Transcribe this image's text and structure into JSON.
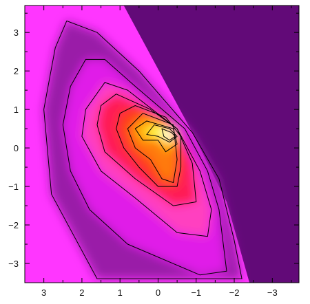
{
  "chart_data": {
    "type": "heatmap",
    "title": "",
    "xlabel": "",
    "ylabel": "",
    "x_axis_reversed": true,
    "xlim": [
      3.5,
      -3.7
    ],
    "ylim": [
      -3.5,
      3.7
    ],
    "x_ticks": [
      {
        "value": 3,
        "label": "3"
      },
      {
        "value": 2,
        "label": "2"
      },
      {
        "value": 1,
        "label": "1"
      },
      {
        "value": 0,
        "label": "0"
      },
      {
        "value": -1,
        "label": "−1"
      },
      {
        "value": -2,
        "label": "−2"
      },
      {
        "value": -3,
        "label": "−3"
      }
    ],
    "y_ticks": [
      {
        "value": 3,
        "label": "3"
      },
      {
        "value": 2,
        "label": "2"
      },
      {
        "value": 1,
        "label": "1"
      },
      {
        "value": 0,
        "label": "0"
      },
      {
        "value": -1,
        "label": "−1"
      },
      {
        "value": -2,
        "label": "−2"
      },
      {
        "value": -3,
        "label": "−3"
      }
    ],
    "grid": false,
    "colormap": [
      "#620a78",
      "#9a1aa8",
      "#e01ae8",
      "#ff3fc0",
      "#ff1a55",
      "#ff3a1a",
      "#ff7a10",
      "#ffc010",
      "#ffff50",
      "#ffffff"
    ],
    "background_left_color": "#ff36ff",
    "background_right_color": "#620a78",
    "contour_color": "#000000",
    "contours": [
      {
        "level": 1,
        "rings": [
          [
            [
              2.4,
              3.3
            ],
            [
              1.6,
              3.0
            ],
            [
              0.5,
              2.0
            ],
            [
              -0.9,
              0.4
            ],
            [
              -1.6,
              -0.8
            ],
            [
              -2.0,
              -2.4
            ],
            [
              -2.2,
              -3.4
            ],
            [
              1.6,
              -3.4
            ],
            [
              2.8,
              -1.2
            ],
            [
              3.0,
              1.0
            ],
            [
              2.7,
              2.6
            ]
          ]
        ]
      },
      {
        "level": 2,
        "rings": [
          [
            [
              1.9,
              2.3
            ],
            [
              1.4,
              2.3
            ],
            [
              0.6,
              1.6
            ],
            [
              -0.7,
              0.5
            ],
            [
              -1.3,
              -0.6
            ],
            [
              -1.6,
              -1.6
            ],
            [
              -1.8,
              -3.2
            ],
            [
              -1.1,
              -3.3
            ],
            [
              0.8,
              -2.5
            ],
            [
              1.8,
              -1.6
            ],
            [
              2.3,
              -0.6
            ],
            [
              2.5,
              0.6
            ],
            [
              2.3,
              1.6
            ]
          ]
        ]
      },
      {
        "level": 3,
        "rings": [
          [
            [
              1.4,
              1.7
            ],
            [
              0.8,
              1.5
            ],
            [
              -0.5,
              0.5
            ],
            [
              -1.1,
              -0.6
            ],
            [
              -1.4,
              -1.6
            ],
            [
              -1.3,
              -2.3
            ],
            [
              -0.5,
              -2.2
            ],
            [
              0.6,
              -1.3
            ],
            [
              1.5,
              -0.6
            ],
            [
              2.0,
              0.3
            ],
            [
              1.9,
              1.0
            ]
          ]
        ]
      },
      {
        "level": 4,
        "rings": [
          [
            [
              1.1,
              1.4
            ],
            [
              0.2,
              1.0
            ],
            [
              -0.5,
              0.5
            ],
            [
              -0.9,
              -0.4
            ],
            [
              -1.0,
              -1.4
            ],
            [
              -0.4,
              -1.5
            ],
            [
              0.6,
              -0.8
            ],
            [
              1.4,
              -0.1
            ],
            [
              1.6,
              0.6
            ],
            [
              1.5,
              1.1
            ]
          ]
        ]
      },
      {
        "level": 5,
        "rings": [
          [
            [
              0.6,
              1.1
            ],
            [
              -0.2,
              0.8
            ],
            [
              -0.6,
              0.3
            ],
            [
              -0.6,
              -0.5
            ],
            [
              -0.5,
              -1.0
            ],
            [
              0.0,
              -1.0
            ],
            [
              0.5,
              -0.5
            ],
            [
              0.9,
              0.0
            ],
            [
              1.1,
              0.5
            ],
            [
              1.0,
              0.9
            ]
          ]
        ]
      },
      {
        "level": 6,
        "rings": [
          [
            [
              0.4,
              0.9
            ],
            [
              -0.4,
              0.6
            ],
            [
              -0.5,
              -0.3
            ],
            [
              -0.4,
              -0.9
            ],
            [
              -0.1,
              -0.8
            ],
            [
              0.2,
              -0.3
            ],
            [
              0.6,
              0.0
            ],
            [
              0.8,
              0.5
            ]
          ]
        ]
      },
      {
        "level": 7,
        "rings": [
          [
            [
              0.3,
              0.7
            ],
            [
              -0.4,
              0.5
            ],
            [
              -0.5,
              0.1
            ],
            [
              -0.2,
              -0.1
            ],
            [
              0.0,
              0.2
            ],
            [
              0.4,
              0.2
            ],
            [
              0.6,
              0.5
            ]
          ]
        ]
      },
      {
        "level": 8,
        "rings": [
          [
            [
              0.1,
              0.6
            ],
            [
              -0.3,
              0.5
            ],
            [
              -0.5,
              0.3
            ],
            [
              -0.3,
              0.15
            ],
            [
              0.0,
              0.3
            ],
            [
              0.3,
              0.35
            ]
          ]
        ]
      },
      {
        "level": 9,
        "rings": [
          [
            [
              -0.1,
              0.5
            ],
            [
              -0.35,
              0.4
            ],
            [
              -0.45,
              0.3
            ],
            [
              -0.3,
              0.2
            ],
            [
              -0.15,
              0.3
            ]
          ]
        ]
      }
    ]
  }
}
